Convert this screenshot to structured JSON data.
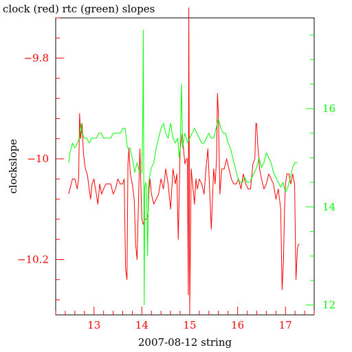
{
  "chart_data": {
    "type": "line",
    "title": "clock (red) rtc (green) slopes",
    "xlabel": "2007-08-12 string",
    "ylabel": "clockslope",
    "grid": false,
    "legend": "none",
    "x_ticks": [
      13,
      14,
      15,
      16,
      17
    ],
    "x_tick_labels": [
      "13",
      "14",
      "15",
      "16",
      "17"
    ],
    "xlim": [
      12.2,
      17.6
    ],
    "left_axis": {
      "ylim": [
        -10.31,
        -9.72
      ],
      "ticks": [
        -9.8,
        -10.0,
        -10.2
      ],
      "tick_labels": [
        "−9.8",
        "−10",
        "−10.2"
      ],
      "color": "#ff0000"
    },
    "right_axis": {
      "ylim": [
        11.8,
        17.85
      ],
      "ticks": [
        12,
        14,
        16
      ],
      "tick_labels": [
        "12",
        "14",
        "16"
      ],
      "color": "#00ff00"
    },
    "series": [
      {
        "name": "clock",
        "axis": "left",
        "color": "#ff0000",
        "x": [
          12.47,
          12.55,
          12.6,
          12.65,
          12.68,
          12.7,
          12.72,
          12.75,
          12.78,
          12.82,
          12.86,
          12.9,
          12.93,
          12.96,
          13.0,
          13.03,
          13.05,
          13.08,
          13.12,
          13.16,
          13.2,
          13.25,
          13.3,
          13.35,
          13.4,
          13.45,
          13.5,
          13.55,
          13.6,
          13.63,
          13.66,
          13.69,
          13.71,
          13.73,
          13.76,
          13.8,
          13.84,
          13.87,
          13.9,
          13.93,
          13.96,
          14.0,
          14.03,
          14.06,
          14.1,
          14.13,
          14.15,
          14.17,
          14.2,
          14.25,
          14.3,
          14.35,
          14.4,
          14.45,
          14.5,
          14.55,
          14.6,
          14.65,
          14.7,
          14.73,
          14.76,
          14.8,
          14.84,
          14.87,
          14.9,
          14.93,
          14.95,
          14.97,
          14.98,
          15.0,
          15.03,
          15.06,
          15.1,
          15.13,
          15.16,
          15.2,
          15.25,
          15.3,
          15.34,
          15.38,
          15.42,
          15.45,
          15.5,
          15.53,
          15.56,
          15.58,
          15.6,
          15.63,
          15.67,
          15.72,
          15.77,
          15.82,
          15.87,
          15.92,
          15.97,
          16.02,
          16.07,
          16.12,
          16.17,
          16.22,
          16.27,
          16.32,
          16.36,
          16.38,
          16.4,
          16.42,
          16.46,
          16.5,
          16.55,
          16.6,
          16.65,
          16.7,
          16.75,
          16.8,
          16.85,
          16.9,
          16.93,
          16.96,
          16.98,
          17.0,
          17.03,
          17.07,
          17.11,
          17.15,
          17.19,
          17.22,
          17.25,
          17.27,
          17.29
        ],
        "y": [
          -10.07,
          -10.04,
          -10.04,
          -10.06,
          -10.04,
          -9.91,
          -9.96,
          -9.93,
          -9.99,
          -10.02,
          -10.03,
          -10.06,
          -10.08,
          -10.05,
          -10.04,
          -10.06,
          -10.07,
          -10.09,
          -10.05,
          -10.07,
          -10.06,
          -10.05,
          -10.05,
          -10.05,
          -10.07,
          -10.06,
          -10.04,
          -10.05,
          -10.05,
          -10.04,
          -10.22,
          -10.24,
          -10.01,
          -9.98,
          -10.03,
          -10.05,
          -10.08,
          -10.17,
          -10.2,
          -10.08,
          -9.98,
          -10.12,
          -10.13,
          -10.12,
          -10.12,
          -10.11,
          -10.06,
          -10.04,
          -10.07,
          -10.09,
          -10.08,
          -10.07,
          -10.04,
          -10.06,
          -10.02,
          -10.05,
          -10.1,
          -10.02,
          -10.05,
          -10.03,
          -10.16,
          -9.98,
          -9.95,
          -9.98,
          -10.01,
          -10.0,
          -10.0,
          -10.27,
          -9.7,
          -10.3,
          -10.02,
          -10.05,
          -10.09,
          -10.04,
          -10.06,
          -10.04,
          -10.05,
          -10.07,
          -10.02,
          -9.98,
          -10.07,
          -10.14,
          -10.02,
          -10.05,
          -10.0,
          -9.87,
          -9.91,
          -10.07,
          -10.02,
          -10.02,
          -10.0,
          -10.02,
          -10.04,
          -10.05,
          -10.05,
          -10.04,
          -10.06,
          -10.03,
          -10.05,
          -10.06,
          -10.06,
          -10.01,
          -10.0,
          -9.93,
          -9.93,
          -9.97,
          -10.02,
          -10.04,
          -10.06,
          -10.05,
          -10.03,
          -10.04,
          -10.05,
          -10.08,
          -10.06,
          -10.1,
          -10.26,
          -10.2,
          -10.1,
          -10.05,
          -10.03,
          -10.03,
          -10.05,
          -10.03,
          -10.05,
          -10.24,
          -10.18,
          -10.17,
          -10.17
        ]
      },
      {
        "name": "rtc",
        "axis": "right",
        "color": "#00ff00",
        "x": [
          12.47,
          12.5,
          12.55,
          12.6,
          12.65,
          12.7,
          12.72,
          12.75,
          12.8,
          12.85,
          12.9,
          12.95,
          13.0,
          13.05,
          13.1,
          13.15,
          13.2,
          13.25,
          13.3,
          13.35,
          13.4,
          13.45,
          13.5,
          13.55,
          13.6,
          13.65,
          13.7,
          13.75,
          13.8,
          13.85,
          13.9,
          13.95,
          14.0,
          14.02,
          14.03,
          14.04,
          14.05,
          14.06,
          14.08,
          14.1,
          14.12,
          14.14,
          14.16,
          14.2,
          14.25,
          14.3,
          14.35,
          14.4,
          14.45,
          14.5,
          14.55,
          14.6,
          14.65,
          14.7,
          14.75,
          14.78,
          14.8,
          14.83,
          14.85,
          14.88,
          14.9,
          14.93,
          14.96,
          15.0,
          15.05,
          15.1,
          15.15,
          15.2,
          15.25,
          15.3,
          15.35,
          15.4,
          15.45,
          15.5,
          15.55,
          15.6,
          15.65,
          15.7,
          15.75,
          15.8,
          15.85,
          15.9,
          15.95,
          16.0,
          16.05,
          16.1,
          16.15,
          16.2,
          16.25,
          16.3,
          16.35,
          16.4,
          16.45,
          16.5,
          16.55,
          16.6,
          16.65,
          16.7,
          16.75,
          16.8,
          16.85,
          16.9,
          16.95,
          17.0,
          17.05,
          17.1,
          17.15,
          17.2,
          17.25
        ],
        "y": [
          14.9,
          15.1,
          15.3,
          15.2,
          15.3,
          15.4,
          15.7,
          15.5,
          15.4,
          15.4,
          15.3,
          15.4,
          15.4,
          15.4,
          15.5,
          15.5,
          15.4,
          15.4,
          15.4,
          15.4,
          15.5,
          15.5,
          15.5,
          15.5,
          15.6,
          15.6,
          15.2,
          15.2,
          15.0,
          14.7,
          14.9,
          14.7,
          14.7,
          15.8,
          17.6,
          14.6,
          12.0,
          14.4,
          14.5,
          14.3,
          13.0,
          14.5,
          14.6,
          14.8,
          14.9,
          15.2,
          15.4,
          15.6,
          15.7,
          15.5,
          15.4,
          15.7,
          15.4,
          15.3,
          15.4,
          15.0,
          15.2,
          16.5,
          15.2,
          15.4,
          15.5,
          15.4,
          15.3,
          15.4,
          15.5,
          15.6,
          15.5,
          15.4,
          15.3,
          15.3,
          15.4,
          15.5,
          15.4,
          15.4,
          15.6,
          15.8,
          15.6,
          15.5,
          15.5,
          15.3,
          15.2,
          15.0,
          14.8,
          14.6,
          14.5,
          14.5,
          14.6,
          14.5,
          14.5,
          14.6,
          14.7,
          14.8,
          15.0,
          14.8,
          14.9,
          15.1,
          15.0,
          14.9,
          14.7,
          14.6,
          14.5,
          14.4,
          14.5,
          14.3,
          14.4,
          14.6,
          14.8,
          14.9,
          14.9
        ]
      }
    ]
  }
}
